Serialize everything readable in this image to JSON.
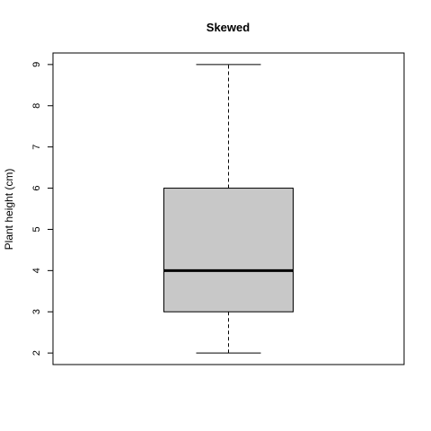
{
  "chart_data": {
    "type": "box",
    "title": "Skewed",
    "xlabel": "",
    "ylabel": "Plant height (cm)",
    "ylim": [
      1.72,
      9.28
    ],
    "yticks": [
      2,
      3,
      4,
      5,
      6,
      7,
      8,
      9
    ],
    "grid": false,
    "boxes": [
      {
        "min": 2,
        "q1": 3,
        "median": 4,
        "q3": 6,
        "max": 9
      }
    ],
    "colors": {
      "box_fill": "#c8c8c8",
      "stroke": "#000000"
    }
  }
}
